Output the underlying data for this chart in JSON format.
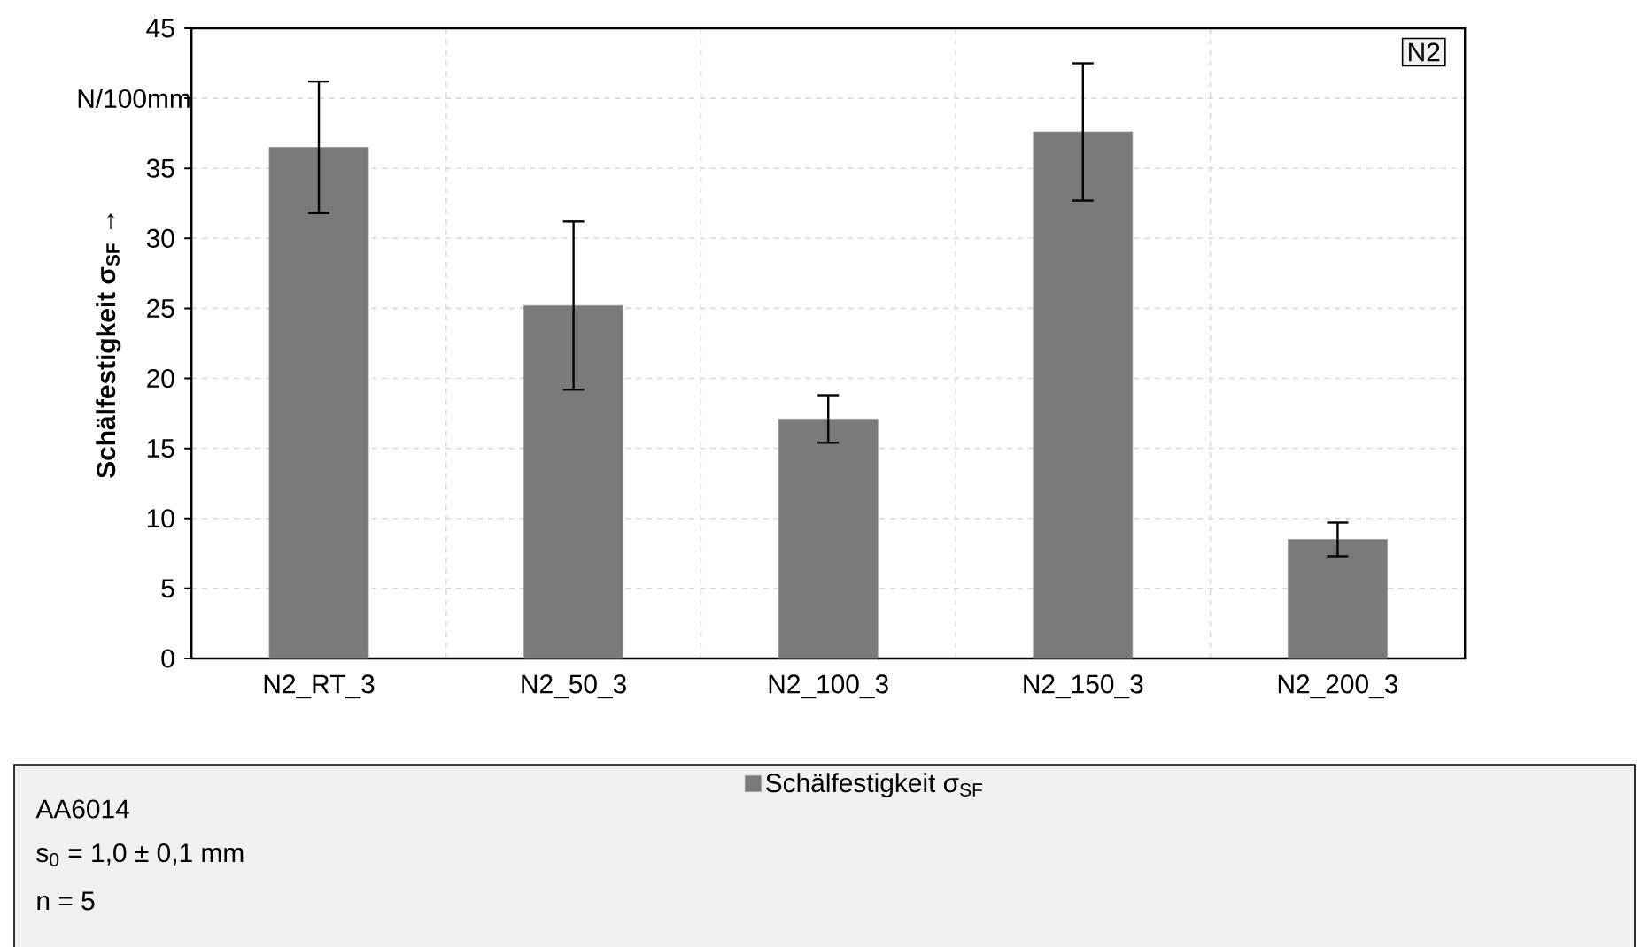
{
  "chart_data": {
    "type": "bar",
    "categories": [
      "N2_RT_3",
      "N2_50_3",
      "N2_100_3",
      "N2_150_3",
      "N2_200_3"
    ],
    "series": [
      {
        "name": "Schälfestigkeit σ$_{SF}$",
        "color": "#7a7a7a",
        "values": [
          36.5,
          25.2,
          17.1,
          37.6,
          8.5
        ],
        "errors": [
          4.7,
          6.0,
          1.7,
          4.9,
          1.2
        ]
      }
    ],
    "ylabel": "Schälfestigkeit σ$_{SF}$ →",
    "ylim": [
      0,
      45
    ],
    "yticks": [
      0,
      5,
      10,
      15,
      20,
      25,
      30,
      35,
      {
        "value": 40,
        "label": null
      },
      45
    ],
    "grid": true,
    "legend": "bottom",
    "annotations": [
      "N2",
      "N/100mm",
      "AA6014",
      "s$_{0}$ = 1,0 ± 0,1 mm",
      "n = 5"
    ]
  }
}
